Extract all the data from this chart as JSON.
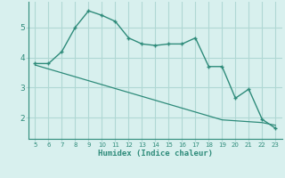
{
  "xlabel": "Humidex (Indice chaleur)",
  "x": [
    5,
    6,
    7,
    8,
    9,
    10,
    11,
    12,
    13,
    14,
    15,
    16,
    17,
    18,
    19,
    20,
    21,
    22,
    23
  ],
  "y_curve": [
    3.8,
    3.8,
    4.2,
    5.0,
    5.55,
    5.4,
    5.2,
    4.65,
    4.45,
    4.4,
    4.45,
    4.45,
    4.65,
    3.7,
    3.7,
    2.65,
    2.95,
    1.95,
    1.65
  ],
  "y_line": [
    3.75,
    3.62,
    3.49,
    3.36,
    3.23,
    3.1,
    2.97,
    2.84,
    2.71,
    2.58,
    2.45,
    2.32,
    2.19,
    2.06,
    1.93,
    1.9,
    1.87,
    1.84,
    1.75
  ],
  "line_color": "#2e8b7a",
  "bg_color": "#d8f0ee",
  "grid_color": "#b0d8d4",
  "tick_color": "#2e8b7a",
  "ylim": [
    1.3,
    5.85
  ],
  "yticks": [
    2,
    3,
    4,
    5
  ],
  "xlim": [
    4.5,
    23.5
  ]
}
